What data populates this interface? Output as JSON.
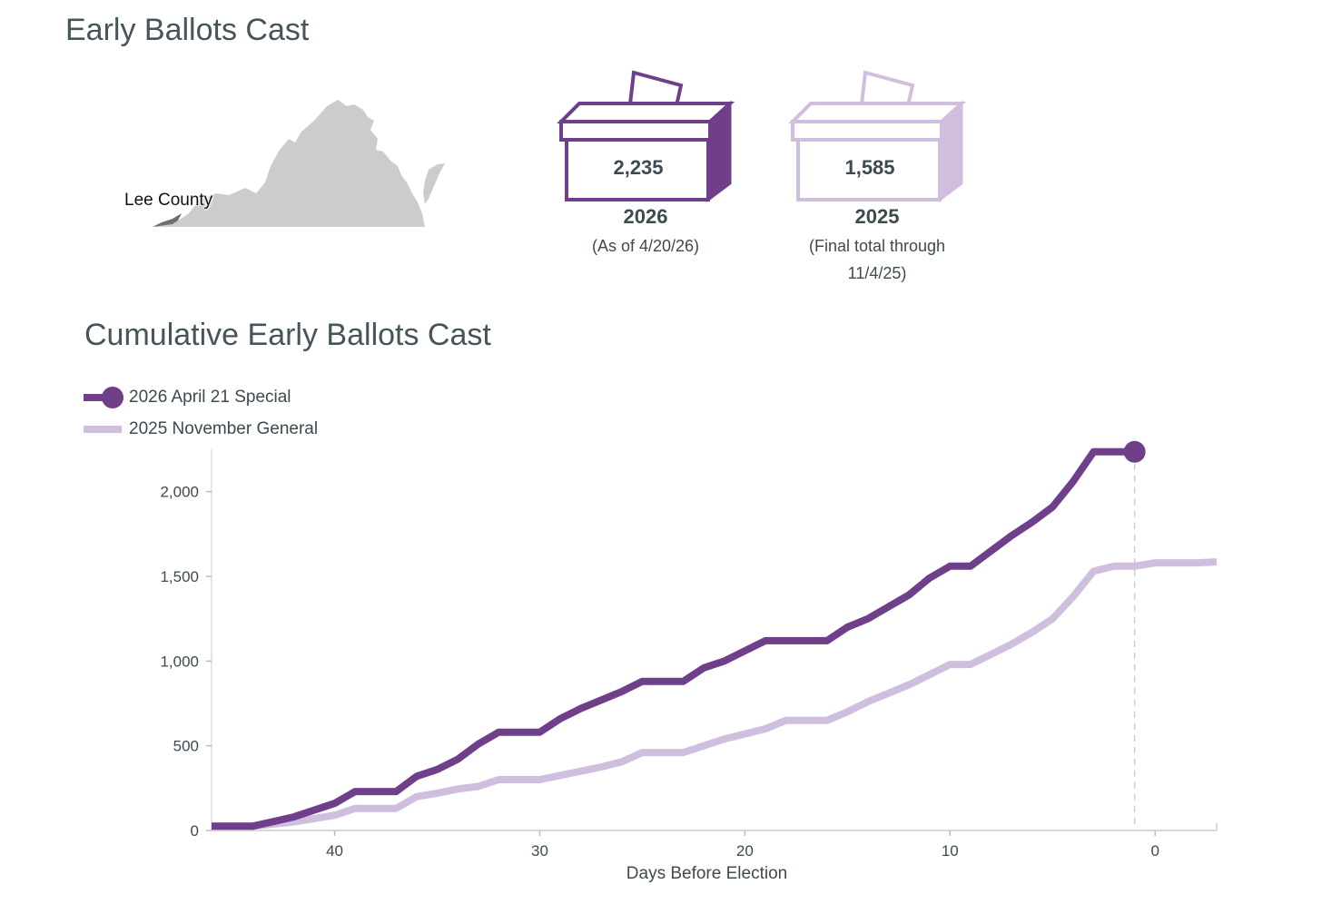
{
  "header": {
    "title": "Early Ballots Cast"
  },
  "map": {
    "county_label": "Lee County",
    "state_color": "#cccccc",
    "county_color": "#6e6e6e"
  },
  "boxes": [
    {
      "count": "2,235",
      "year": "2026",
      "note": "(As of 4/20/26)",
      "color": "#6f3f8a"
    },
    {
      "count": "1,585",
      "year": "2025",
      "note_line1": "(Final total through",
      "note_line2": "11/4/25)",
      "color": "#cfbedd"
    }
  ],
  "chart_section": {
    "title": "Cumulative Early Ballots Cast"
  },
  "chart_data": {
    "type": "line",
    "title": "Cumulative Early Ballots Cast",
    "xlabel": "Days Before Election",
    "ylabel": "",
    "x_reversed": true,
    "xlim": [
      46,
      -3
    ],
    "ylim": [
      0,
      2250
    ],
    "x_ticks": [
      40,
      30,
      20,
      10,
      0
    ],
    "x_tick_labels": [
      "40",
      "30",
      "20",
      "10",
      "0"
    ],
    "y_ticks": [
      0,
      500,
      1000,
      1500,
      2000
    ],
    "y_tick_labels": [
      "0",
      "500",
      "1,000",
      "1,500",
      "2,000"
    ],
    "legend_position": "top-left",
    "series": [
      {
        "name": "2026 April 21 Special",
        "color": "#6f3f8a",
        "end_marker": true,
        "x": [
          46,
          44,
          42,
          40,
          39,
          37,
          36,
          35,
          34,
          33,
          32,
          30,
          29,
          28,
          27,
          26,
          25,
          23,
          22,
          21,
          20,
          19,
          16,
          15,
          14,
          13,
          12,
          11,
          10,
          9,
          8,
          7,
          6,
          5,
          4,
          3,
          1
        ],
        "values": [
          25,
          25,
          80,
          160,
          230,
          230,
          320,
          360,
          420,
          510,
          580,
          580,
          660,
          720,
          770,
          820,
          880,
          880,
          960,
          1000,
          1060,
          1120,
          1120,
          1200,
          1250,
          1320,
          1390,
          1490,
          1560,
          1560,
          1650,
          1740,
          1820,
          1910,
          2060,
          2235,
          2235
        ]
      },
      {
        "name": "2025 November General",
        "color": "#cfbedd",
        "end_marker": false,
        "x": [
          46,
          44,
          42,
          40,
          39,
          37,
          36,
          35,
          34,
          33,
          32,
          30,
          29,
          28,
          27,
          26,
          25,
          23,
          22,
          21,
          20,
          19,
          18,
          16,
          15,
          14,
          13,
          12,
          11,
          10,
          9,
          8,
          7,
          6,
          5,
          4,
          3,
          2,
          1,
          0,
          -1,
          -2,
          -3
        ],
        "values": [
          25,
          25,
          50,
          90,
          130,
          130,
          200,
          220,
          245,
          260,
          300,
          300,
          325,
          350,
          375,
          405,
          460,
          460,
          500,
          540,
          570,
          600,
          650,
          650,
          700,
          760,
          810,
          860,
          920,
          980,
          980,
          1040,
          1100,
          1170,
          1250,
          1380,
          1530,
          1560,
          1560,
          1580,
          1580,
          1580,
          1585
        ]
      }
    ],
    "reference_line_x": 1
  }
}
